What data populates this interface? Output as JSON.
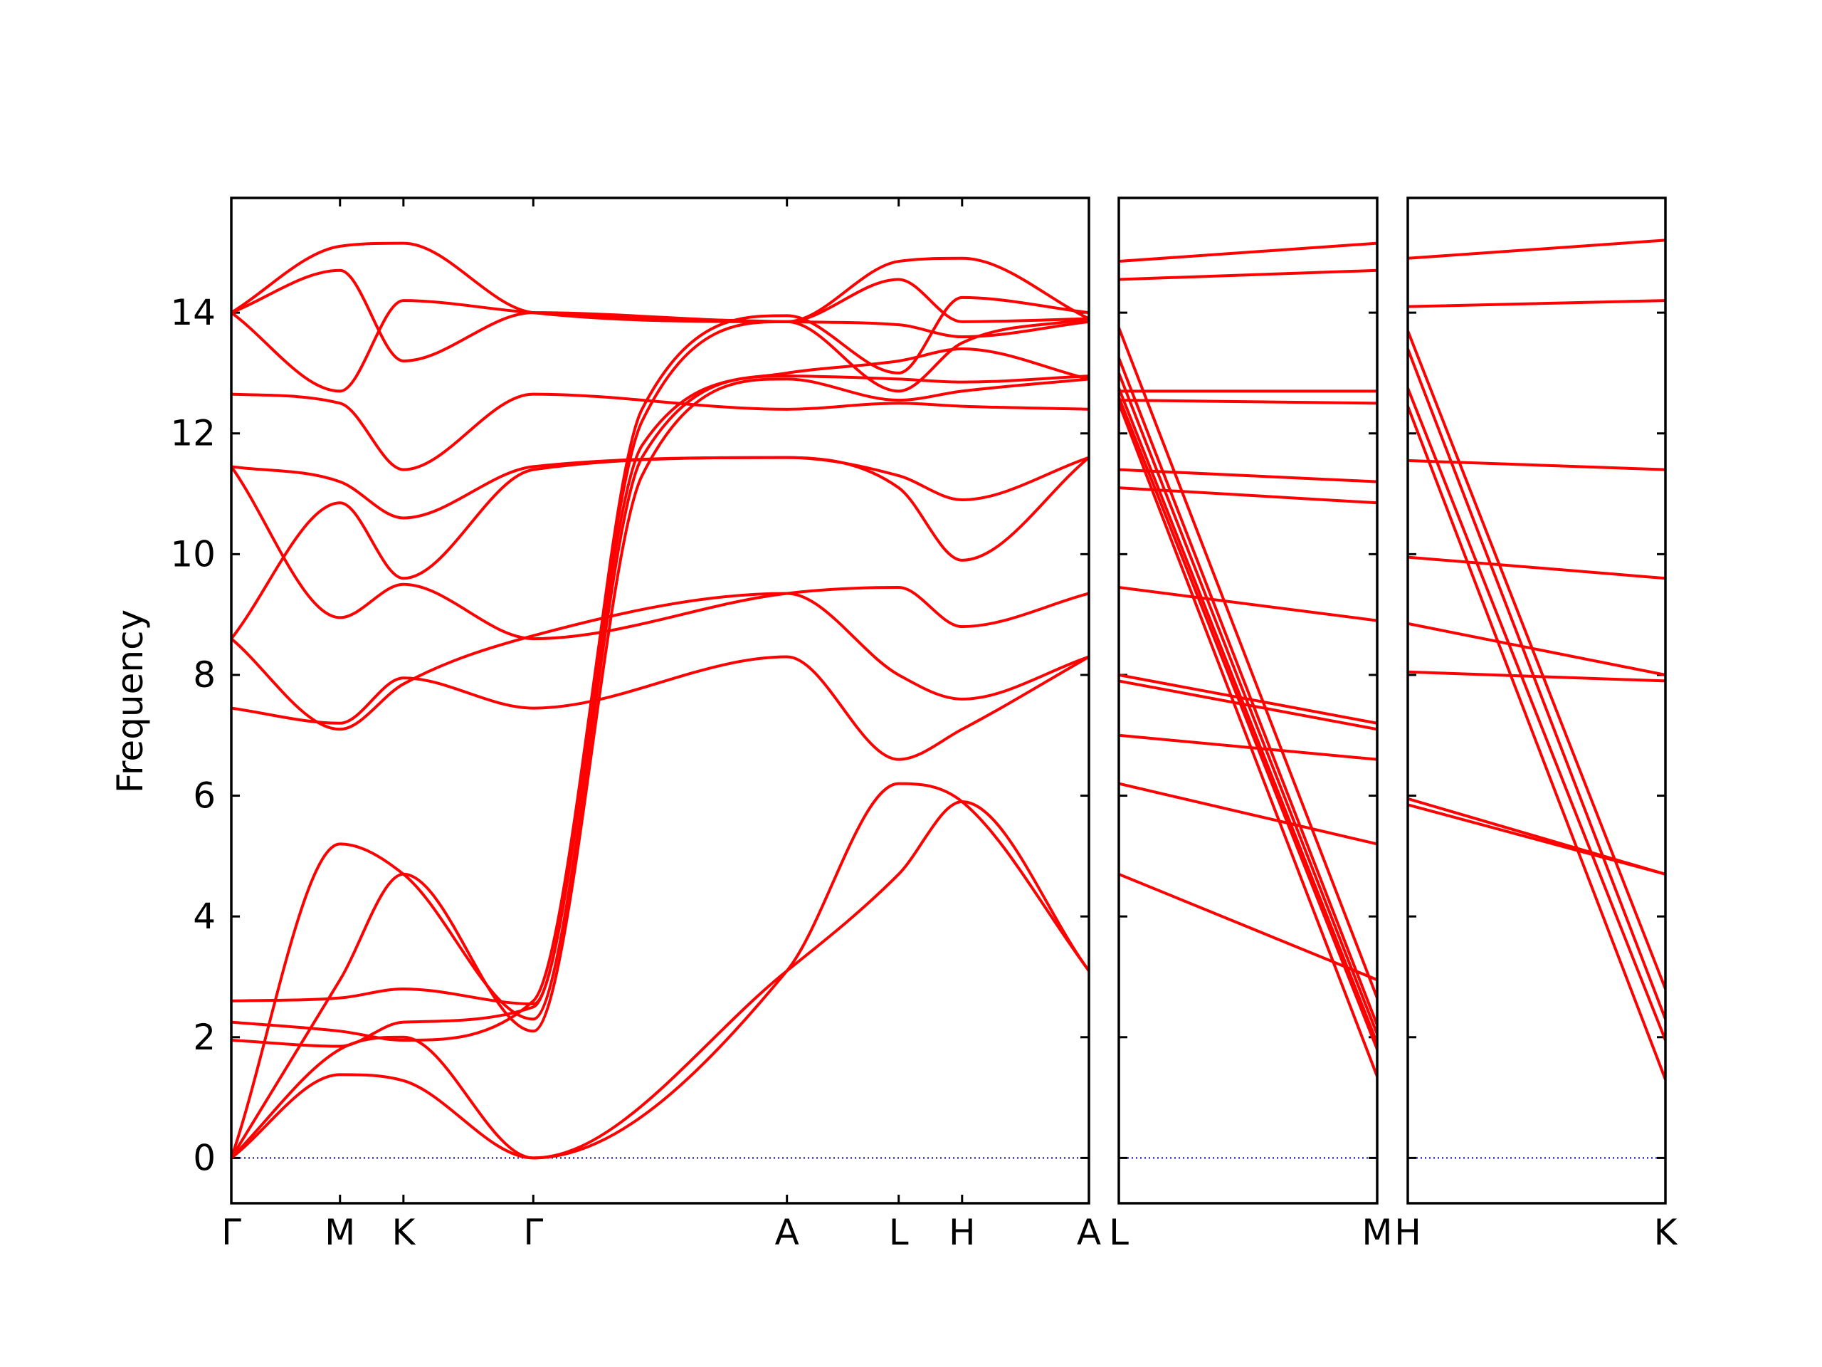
{
  "chart_data": {
    "type": "line",
    "ylabel": "Frequency",
    "ylim": [
      -0.75,
      15.9
    ],
    "yticks": [
      0,
      2,
      4,
      6,
      8,
      10,
      12,
      14
    ],
    "line_color": "#ff0000",
    "zero_line_color": "#0000cc",
    "panels": [
      {
        "xlim": [
          0,
          14.2
        ],
        "xticks": [
          {
            "x": 0,
            "label": "Γ"
          },
          {
            "x": 1.8,
            "label": "M"
          },
          {
            "x": 2.85,
            "label": "K"
          },
          {
            "x": 5.0,
            "label": "Γ"
          },
          {
            "x": 9.2,
            "label": "A"
          },
          {
            "x": 11.05,
            "label": "L"
          },
          {
            "x": 12.1,
            "label": "H"
          },
          {
            "x": 14.2,
            "label": "A"
          }
        ],
        "series": [
          {
            "x": [
              0,
              1.8,
              2.85,
              5.0,
              9.2,
              11.05,
              12.1,
              14.2
            ],
            "y": [
              0,
              1.38,
              1.28,
              0,
              3.1,
              4.7,
              5.9,
              3.1
            ]
          },
          {
            "x": [
              0,
              1.8,
              2.85,
              5.0,
              9.2,
              11.05,
              12.1,
              14.2
            ],
            "y": [
              0,
              1.8,
              2.0,
              0,
              3.1,
              6.2,
              5.9,
              3.1
            ]
          },
          {
            "x": [
              0,
              1.8,
              2.85,
              5.0,
              6.8,
              9.2,
              11.05,
              12.1,
              14.2
            ],
            "y": [
              0,
              2.95,
              4.7,
              2.1,
              11.3,
              12.9,
              12.55,
              12.7,
              12.9
            ]
          },
          {
            "x": [
              0,
              1.8,
              2.85,
              5.0,
              6.8,
              9.2,
              11.05,
              12.1,
              14.2
            ],
            "y": [
              0,
              5.2,
              4.7,
              2.3,
              11.6,
              12.95,
              12.9,
              12.85,
              12.95
            ]
          },
          {
            "x": [
              0,
              1.8,
              2.85,
              5.0,
              6.8,
              9.2,
              11.05,
              12.1,
              14.2
            ],
            "y": [
              1.95,
              1.85,
              2.25,
              2.5,
              11.8,
              13.0,
              13.2,
              13.4,
              12.9
            ]
          },
          {
            "x": [
              0,
              1.8,
              2.85,
              5.0,
              6.8,
              9.2,
              11.05,
              12.1,
              14.2
            ],
            "y": [
              2.25,
              2.1,
              1.95,
              2.6,
              12.2,
              13.85,
              12.7,
              13.5,
              13.9
            ]
          },
          {
            "x": [
              0,
              1.8,
              2.85,
              5.0,
              6.8,
              9.2,
              11.05,
              12.1,
              14.2
            ],
            "y": [
              2.6,
              2.65,
              2.8,
              2.55,
              12.4,
              13.95,
              13.0,
              14.25,
              14.0
            ]
          },
          {
            "x": [
              0,
              1.8,
              2.85,
              5.0,
              9.2,
              11.05,
              12.1,
              14.2
            ],
            "y": [
              7.45,
              7.2,
              7.95,
              7.45,
              8.3,
              6.6,
              7.1,
              8.3
            ]
          },
          {
            "x": [
              0,
              1.8,
              2.85,
              5.0,
              9.2,
              11.05,
              12.1,
              14.2
            ],
            "y": [
              8.6,
              7.1,
              7.85,
              8.65,
              9.35,
              8.0,
              7.6,
              8.3
            ]
          },
          {
            "x": [
              0,
              1.8,
              2.85,
              5.0,
              9.2,
              11.05,
              12.1,
              14.2
            ],
            "y": [
              11.45,
              8.95,
              9.5,
              8.6,
              9.35,
              9.45,
              8.8,
              9.35
            ]
          },
          {
            "x": [
              0,
              1.8,
              2.85,
              5.0,
              9.2,
              11.05,
              12.1,
              14.2
            ],
            "y": [
              8.6,
              10.85,
              9.6,
              11.4,
              11.6,
              11.1,
              9.9,
              11.6
            ]
          },
          {
            "x": [
              0,
              1.8,
              2.85,
              5.0,
              9.2,
              11.05,
              12.1,
              14.2
            ],
            "y": [
              11.45,
              11.2,
              10.6,
              11.45,
              11.6,
              11.3,
              10.9,
              11.6
            ]
          },
          {
            "x": [
              0,
              1.8,
              2.85,
              5.0,
              9.2,
              11.05,
              12.1,
              14.2
            ],
            "y": [
              12.65,
              12.5,
              11.4,
              12.65,
              12.4,
              12.5,
              12.45,
              12.4
            ]
          },
          {
            "x": [
              0,
              1.8,
              2.85,
              5.0,
              9.2,
              11.05,
              12.1,
              14.2
            ],
            "y": [
              14.0,
              12.7,
              14.2,
              14.0,
              13.85,
              13.8,
              13.6,
              13.85
            ]
          },
          {
            "x": [
              0,
              1.8,
              2.85,
              5.0,
              9.2,
              11.05,
              12.1,
              14.2
            ],
            "y": [
              14.0,
              14.7,
              13.2,
              14.0,
              13.85,
              14.55,
              13.85,
              13.9
            ]
          },
          {
            "x": [
              0,
              1.8,
              2.85,
              5.0,
              9.2,
              11.05,
              12.1,
              14.2
            ],
            "y": [
              14.0,
              15.1,
              15.15,
              14.0,
              13.85,
              14.85,
              14.9,
              13.9
            ]
          }
        ]
      },
      {
        "xlim": [
          0,
          1
        ],
        "xticks": [
          {
            "x": 0,
            "label": "L"
          },
          {
            "x": 1,
            "label": "M"
          }
        ],
        "series": [
          {
            "x": [
              0,
              1
            ],
            "y": [
              4.7,
              2.95
            ]
          },
          {
            "x": [
              0,
              1
            ],
            "y": [
              6.2,
              5.2
            ]
          },
          {
            "x": [
              0,
              1
            ],
            "y": [
              7.0,
              6.6
            ]
          },
          {
            "x": [
              0,
              1
            ],
            "y": [
              7.9,
              7.1
            ]
          },
          {
            "x": [
              0,
              1
            ],
            "y": [
              8.0,
              7.2
            ]
          },
          {
            "x": [
              0,
              1
            ],
            "y": [
              9.45,
              8.9
            ]
          },
          {
            "x": [
              0,
              1
            ],
            "y": [
              11.1,
              10.85
            ]
          },
          {
            "x": [
              0,
              1
            ],
            "y": [
              11.4,
              11.2
            ]
          },
          {
            "x": [
              0,
              1
            ],
            "y": [
              12.55,
              12.5
            ]
          },
          {
            "x": [
              0,
              1
            ],
            "y": [
              12.7,
              12.7
            ]
          },
          {
            "x": [
              0,
              1
            ],
            "y": [
              12.5,
              1.35
            ]
          },
          {
            "x": [
              0,
              1
            ],
            "y": [
              12.6,
              1.8
            ]
          },
          {
            "x": [
              0,
              1
            ],
            "y": [
              12.75,
              1.9
            ]
          },
          {
            "x": [
              0,
              1
            ],
            "y": [
              13.0,
              2.05
            ]
          },
          {
            "x": [
              0,
              1
            ],
            "y": [
              13.25,
              2.2
            ]
          },
          {
            "x": [
              0,
              1
            ],
            "y": [
              13.75,
              2.65
            ]
          },
          {
            "x": [
              0,
              1
            ],
            "y": [
              14.55,
              14.7
            ]
          },
          {
            "x": [
              0,
              1
            ],
            "y": [
              14.85,
              15.15
            ]
          }
        ]
      },
      {
        "xlim": [
          0,
          1
        ],
        "xticks": [
          {
            "x": 0,
            "label": "H"
          },
          {
            "x": 1,
            "label": "K"
          }
        ],
        "series": [
          {
            "x": [
              0,
              1
            ],
            "y": [
              5.85,
              4.7
            ]
          },
          {
            "x": [
              0,
              1
            ],
            "y": [
              5.95,
              4.7
            ]
          },
          {
            "x": [
              0,
              1
            ],
            "y": [
              8.05,
              7.9
            ]
          },
          {
            "x": [
              0,
              1
            ],
            "y": [
              8.85,
              8.0
            ]
          },
          {
            "x": [
              0,
              1
            ],
            "y": [
              9.95,
              9.6
            ]
          },
          {
            "x": [
              0,
              1
            ],
            "y": [
              11.55,
              11.4
            ]
          },
          {
            "x": [
              0,
              1
            ],
            "y": [
              12.45,
              1.3
            ]
          },
          {
            "x": [
              0,
              1
            ],
            "y": [
              12.75,
              1.95
            ]
          },
          {
            "x": [
              0,
              1
            ],
            "y": [
              13.4,
              2.3
            ]
          },
          {
            "x": [
              0,
              1
            ],
            "y": [
              13.7,
              2.8
            ]
          },
          {
            "x": [
              0,
              1
            ],
            "y": [
              14.1,
              14.2
            ]
          },
          {
            "x": [
              0,
              1
            ],
            "y": [
              14.9,
              15.2
            ]
          }
        ]
      }
    ]
  }
}
